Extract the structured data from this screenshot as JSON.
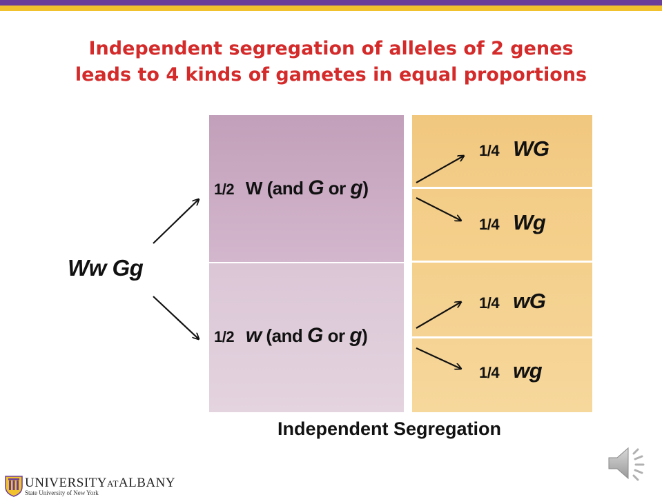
{
  "title": {
    "line1": "Independent segregation of alleles of 2 genes",
    "line2": "leads to 4 kinds of gametes in equal proportions"
  },
  "parent_genotype": "Ww Gg",
  "first_split": [
    {
      "fraction": "1/2",
      "allele": "W",
      "rest_a": "(and ",
      "g_upper": "G",
      "or": " or ",
      "g_lower": "g",
      "close": ")"
    },
    {
      "fraction": "1/2",
      "allele": "w",
      "rest_a": "(and ",
      "g_upper": "G",
      "or": " or ",
      "g_lower": "g",
      "close": ")"
    }
  ],
  "gametes": [
    {
      "fraction": "1/4",
      "genotype": "WG"
    },
    {
      "fraction": "1/4",
      "genotype": "Wg"
    },
    {
      "fraction": "1/4",
      "genotype": "wG"
    },
    {
      "fraction": "1/4",
      "genotype": "wg"
    }
  ],
  "caption": "Independent Segregation",
  "logo": {
    "name_main": "UNIVERSITY",
    "name_at": "AT",
    "name_end": "ALBANY",
    "subtitle": "State University of New York"
  },
  "colors": {
    "title": "#d42a2a",
    "top_bar_purple": "#6a3d9a",
    "top_bar_gold": "#f2c12e",
    "left_panel": "#c9a9c2",
    "right_panel": "#f3cd88"
  }
}
